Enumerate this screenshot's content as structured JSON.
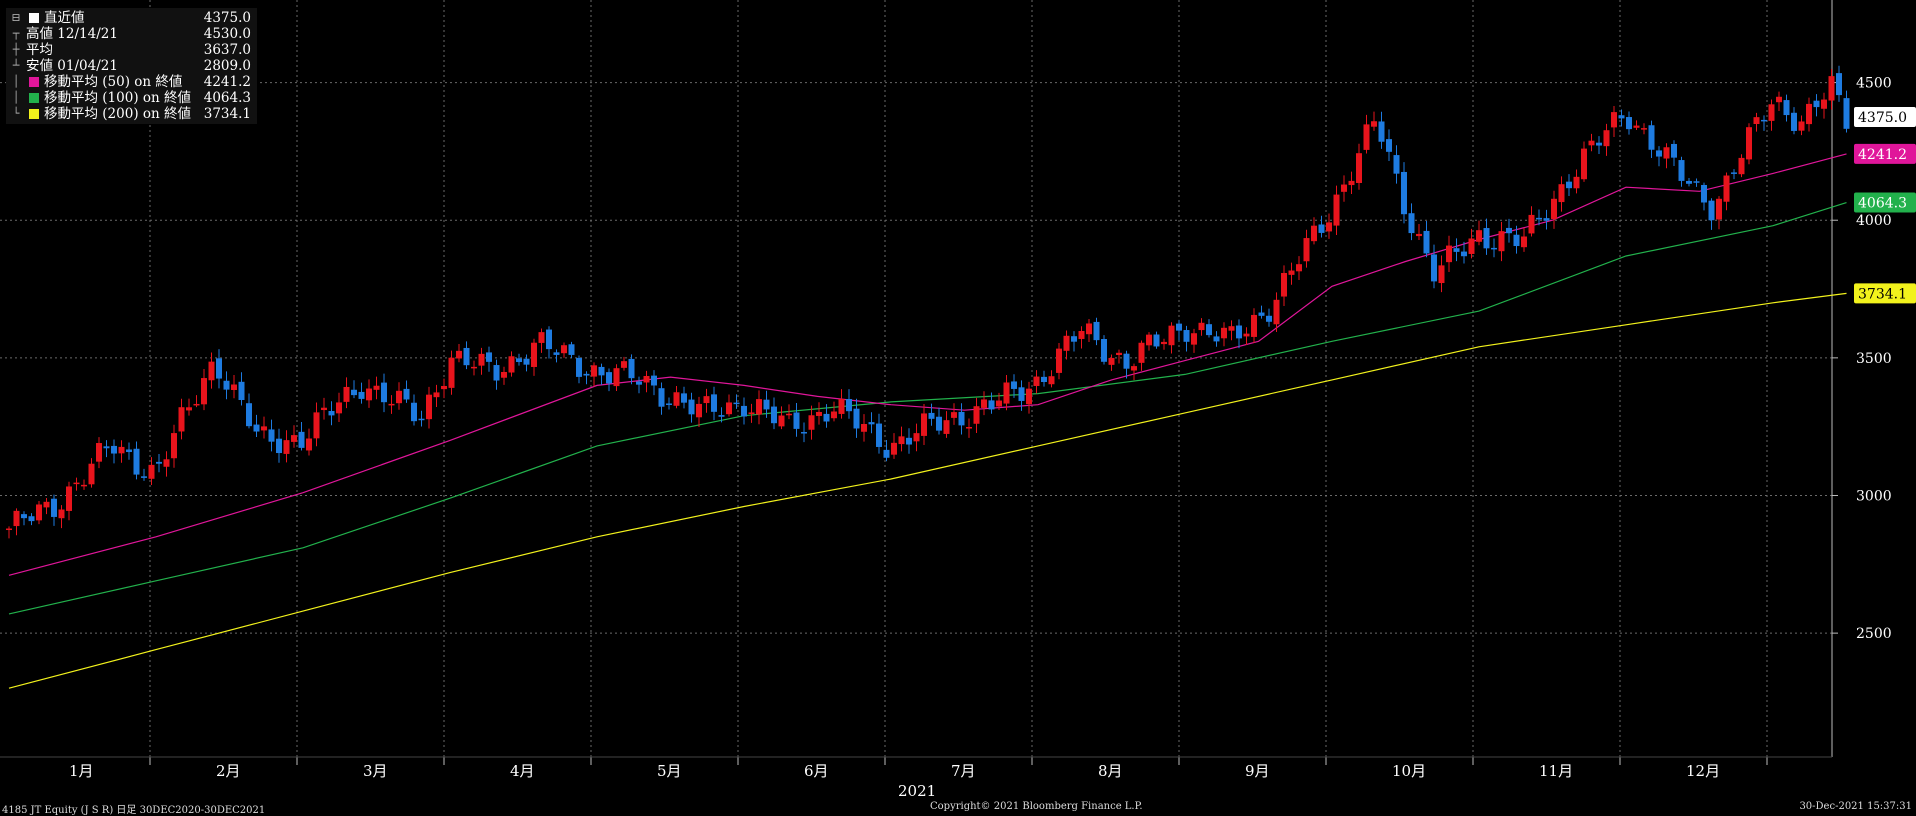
{
  "legend": {
    "last": {
      "label": "直近値",
      "value": "4375.0"
    },
    "high": {
      "label": "高値 12/14/21",
      "value": "4530.0"
    },
    "avg": {
      "label": "平均",
      "value": "3637.0"
    },
    "low": {
      "label": "安値 01/04/21",
      "value": "2809.0"
    },
    "ma50": {
      "label": "移動平均 (50) on 終値",
      "value": "4241.2",
      "color": "#e0169a"
    },
    "ma100": {
      "label": "移動平均 (100) on 終値",
      "value": "4064.3",
      "color": "#22b14c"
    },
    "ma200": {
      "label": "移動平均 (200) on 終値",
      "value": "3734.1",
      "color": "#f2f21c"
    }
  },
  "footer": {
    "left": "4185 JT Equity (J S R)  日足 30DEC2020-30DEC2021",
    "center": "Copyright© 2021 Bloomberg Finance L.P.",
    "right": "30-Dec-2021 15:37:31"
  },
  "chart_data": {
    "type": "candlestick",
    "year_label": "2021",
    "months": [
      "1月",
      "2月",
      "3月",
      "4月",
      "5月",
      "6月",
      "7月",
      "8月",
      "9月",
      "10月",
      "11月",
      "12月"
    ],
    "y_ticks": [
      2500,
      3000,
      3500,
      4000,
      4500
    ],
    "ylim": [
      2050,
      4800
    ],
    "grid": true,
    "up_color": "#e8141c",
    "down_color": "#1e7be0",
    "price": [
      {
        "x": 0.0,
        "y": 2880
      },
      {
        "x": 0.3,
        "y": 2960
      },
      {
        "x": 0.7,
        "y": 3180
      },
      {
        "x": 1.0,
        "y": 3080
      },
      {
        "x": 1.4,
        "y": 3500
      },
      {
        "x": 1.7,
        "y": 3200
      },
      {
        "x": 2.0,
        "y": 3210
      },
      {
        "x": 2.4,
        "y": 3410
      },
      {
        "x": 2.8,
        "y": 3280
      },
      {
        "x": 3.0,
        "y": 3500
      },
      {
        "x": 3.3,
        "y": 3450
      },
      {
        "x": 3.6,
        "y": 3550
      },
      {
        "x": 4.0,
        "y": 3450
      },
      {
        "x": 4.3,
        "y": 3420
      },
      {
        "x": 4.7,
        "y": 3300
      },
      {
        "x": 5.0,
        "y": 3340
      },
      {
        "x": 5.3,
        "y": 3250
      },
      {
        "x": 5.6,
        "y": 3320
      },
      {
        "x": 6.0,
        "y": 3180
      },
      {
        "x": 6.3,
        "y": 3260
      },
      {
        "x": 6.7,
        "y": 3330
      },
      {
        "x": 7.0,
        "y": 3420
      },
      {
        "x": 7.3,
        "y": 3600
      },
      {
        "x": 7.6,
        "y": 3480
      },
      {
        "x": 8.0,
        "y": 3620
      },
      {
        "x": 8.3,
        "y": 3560
      },
      {
        "x": 8.6,
        "y": 3700
      },
      {
        "x": 9.0,
        "y": 4050
      },
      {
        "x": 9.3,
        "y": 4360
      },
      {
        "x": 9.5,
        "y": 4050
      },
      {
        "x": 9.7,
        "y": 3800
      },
      {
        "x": 10.0,
        "y": 3950
      },
      {
        "x": 10.3,
        "y": 3920
      },
      {
        "x": 10.6,
        "y": 4150
      },
      {
        "x": 11.0,
        "y": 4400
      },
      {
        "x": 11.3,
        "y": 4200
      },
      {
        "x": 11.6,
        "y": 4050
      },
      {
        "x": 12.0,
        "y": 4450
      },
      {
        "x": 12.2,
        "y": 4350
      },
      {
        "x": 12.4,
        "y": 4480
      },
      {
        "x": 12.5,
        "y": 4375
      }
    ],
    "ma50": [
      {
        "x": 0.0,
        "y": 2710
      },
      {
        "x": 1.0,
        "y": 2850
      },
      {
        "x": 2.0,
        "y": 3010
      },
      {
        "x": 3.0,
        "y": 3200
      },
      {
        "x": 4.0,
        "y": 3400
      },
      {
        "x": 4.5,
        "y": 3430
      },
      {
        "x": 5.0,
        "y": 3400
      },
      {
        "x": 5.5,
        "y": 3360
      },
      {
        "x": 6.0,
        "y": 3330
      },
      {
        "x": 6.5,
        "y": 3310
      },
      {
        "x": 7.0,
        "y": 3330
      },
      {
        "x": 7.5,
        "y": 3420
      },
      {
        "x": 8.0,
        "y": 3490
      },
      {
        "x": 8.5,
        "y": 3560
      },
      {
        "x": 9.0,
        "y": 3760
      },
      {
        "x": 9.5,
        "y": 3850
      },
      {
        "x": 10.0,
        "y": 3930
      },
      {
        "x": 10.5,
        "y": 4000
      },
      {
        "x": 11.0,
        "y": 4120
      },
      {
        "x": 11.5,
        "y": 4105
      },
      {
        "x": 12.0,
        "y": 4170
      },
      {
        "x": 12.5,
        "y": 4241
      }
    ],
    "ma100": [
      {
        "x": 0.0,
        "y": 2570
      },
      {
        "x": 1.0,
        "y": 2690
      },
      {
        "x": 2.0,
        "y": 2810
      },
      {
        "x": 3.0,
        "y": 2990
      },
      {
        "x": 4.0,
        "y": 3180
      },
      {
        "x": 5.0,
        "y": 3290
      },
      {
        "x": 6.0,
        "y": 3340
      },
      {
        "x": 7.0,
        "y": 3370
      },
      {
        "x": 8.0,
        "y": 3440
      },
      {
        "x": 9.0,
        "y": 3560
      },
      {
        "x": 10.0,
        "y": 3670
      },
      {
        "x": 11.0,
        "y": 3870
      },
      {
        "x": 12.0,
        "y": 3980
      },
      {
        "x": 12.5,
        "y": 4064
      }
    ],
    "ma200": [
      {
        "x": 0.0,
        "y": 2300
      },
      {
        "x": 1.0,
        "y": 2440
      },
      {
        "x": 2.0,
        "y": 2580
      },
      {
        "x": 3.0,
        "y": 2720
      },
      {
        "x": 4.0,
        "y": 2850
      },
      {
        "x": 5.0,
        "y": 2960
      },
      {
        "x": 6.0,
        "y": 3060
      },
      {
        "x": 7.0,
        "y": 3180
      },
      {
        "x": 8.0,
        "y": 3300
      },
      {
        "x": 9.0,
        "y": 3420
      },
      {
        "x": 10.0,
        "y": 3540
      },
      {
        "x": 11.0,
        "y": 3620
      },
      {
        "x": 12.0,
        "y": 3700
      },
      {
        "x": 12.5,
        "y": 3734
      }
    ],
    "last_labels": [
      {
        "value": 4375.0,
        "text": "4375.0",
        "bg": "#ffffff",
        "fg": "#000000"
      },
      {
        "value": 4241.2,
        "text": "4241.2",
        "bg": "#e0169a",
        "fg": "#ffffff"
      },
      {
        "value": 4064.3,
        "text": "4064.3",
        "bg": "#22b14c",
        "fg": "#ffffff"
      },
      {
        "value": 3734.1,
        "text": "3734.1",
        "bg": "#f2f21c",
        "fg": "#000000"
      }
    ]
  }
}
